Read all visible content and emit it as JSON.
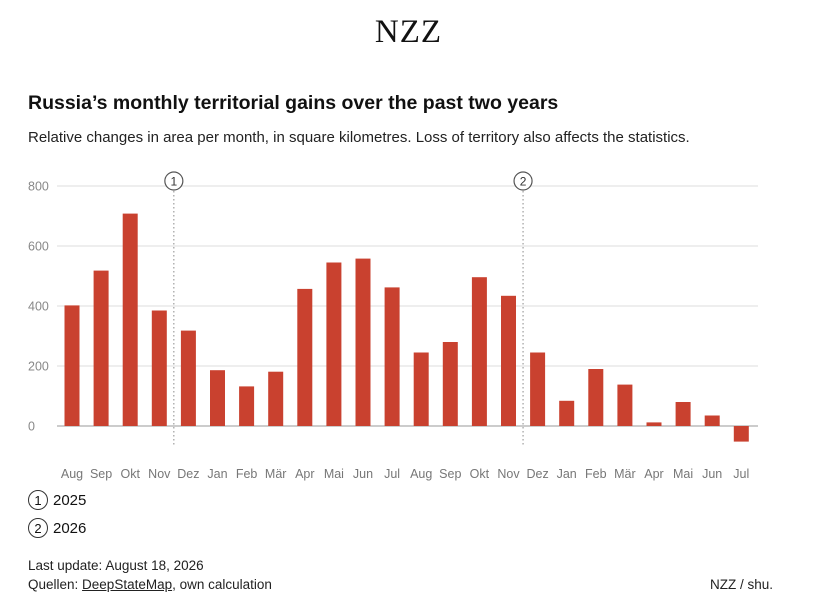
{
  "header": {
    "logo": "NZZ"
  },
  "chart_data": {
    "type": "bar",
    "title": "Russia’s monthly territorial gains over the past two years",
    "subtitle": "Relative changes in area per month, in square kilometres. Loss of territory also affects the statistics.",
    "categories": [
      "Aug",
      "Sep",
      "Okt",
      "Nov",
      "Dez",
      "Jan",
      "Feb",
      "Mär",
      "Apr",
      "Mai",
      "Jun",
      "Jul",
      "Aug",
      "Sep",
      "Okt",
      "Nov",
      "Dez",
      "Jan",
      "Feb",
      "Mär",
      "Apr",
      "Mai",
      "Jun",
      "Jul"
    ],
    "values": [
      402,
      518,
      708,
      385,
      318,
      186,
      132,
      181,
      457,
      545,
      558,
      462,
      245,
      280,
      496,
      434,
      245,
      84,
      190,
      138,
      12,
      80,
      35,
      -52
    ],
    "yticks": [
      0,
      200,
      400,
      600,
      800
    ],
    "ylim": [
      -60,
      800
    ],
    "bar_color": "#c9412f",
    "grid": true,
    "markers": [
      {
        "label": "1",
        "after_index": 3
      },
      {
        "label": "2",
        "after_index": 15
      }
    ]
  },
  "legend": [
    {
      "marker": "1",
      "text": "2025"
    },
    {
      "marker": "2",
      "text": "2026"
    }
  ],
  "footer": {
    "last_update": "Last update: August 18, 2026",
    "sources_prefix": "Quellen: ",
    "sources_link": "DeepStateMap",
    "sources_suffix": ", own calculation",
    "credit": "NZZ / shu."
  }
}
